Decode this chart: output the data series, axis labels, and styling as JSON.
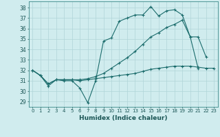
{
  "xlabel": "Humidex (Indice chaleur)",
  "background_color": "#d0ecee",
  "grid_color": "#b0d4d8",
  "line_color": "#1a6b6b",
  "xlim": [
    -0.5,
    23.5
  ],
  "ylim": [
    28.5,
    38.6
  ],
  "xticks": [
    0,
    1,
    2,
    3,
    4,
    5,
    6,
    7,
    8,
    9,
    10,
    11,
    12,
    13,
    14,
    15,
    16,
    17,
    18,
    19,
    20,
    21,
    22,
    23
  ],
  "yticks": [
    29,
    30,
    31,
    32,
    33,
    34,
    35,
    36,
    37,
    38
  ],
  "line1_x": [
    0,
    1,
    2,
    3,
    4,
    5,
    6,
    7,
    8,
    9,
    10,
    11,
    12,
    13,
    14,
    15,
    16,
    17,
    18,
    19,
    20,
    21,
    22
  ],
  "line1_y": [
    32.0,
    31.5,
    30.5,
    31.1,
    31.0,
    31.0,
    30.3,
    28.9,
    31.0,
    34.8,
    35.1,
    36.7,
    37.0,
    37.3,
    37.3,
    38.1,
    37.2,
    37.7,
    37.8,
    37.3,
    35.2,
    35.2,
    33.3
  ],
  "line2_x": [
    0,
    1,
    2,
    3,
    4,
    5,
    6,
    7,
    8,
    9,
    10,
    11,
    12,
    13,
    14,
    15,
    16,
    17,
    18,
    19,
    20,
    21,
    22,
    23
  ],
  "line2_y": [
    32.0,
    31.5,
    30.7,
    31.1,
    31.1,
    31.1,
    31.0,
    31.1,
    31.2,
    31.3,
    31.4,
    31.5,
    31.6,
    31.7,
    31.9,
    32.1,
    32.2,
    32.3,
    32.4,
    32.4,
    32.4,
    32.3,
    32.2,
    32.2
  ],
  "line3_x": [
    0,
    1,
    2,
    3,
    4,
    5,
    6,
    7,
    8,
    9,
    10,
    11,
    12,
    13,
    14,
    15,
    16,
    17,
    18,
    19,
    20,
    21
  ],
  "line3_y": [
    32.0,
    31.5,
    30.7,
    31.1,
    31.1,
    31.1,
    31.1,
    31.2,
    31.4,
    31.7,
    32.2,
    32.7,
    33.2,
    33.8,
    34.5,
    35.2,
    35.6,
    36.1,
    36.4,
    36.8,
    35.2,
    32.2
  ]
}
